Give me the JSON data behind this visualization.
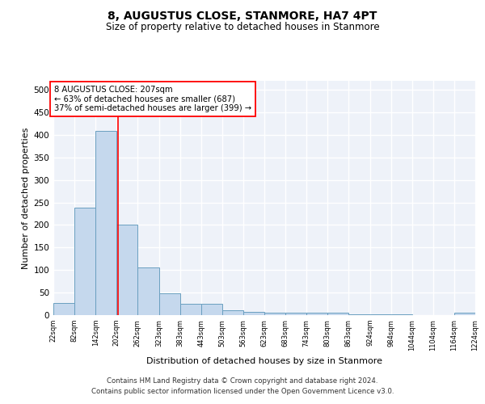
{
  "title": "8, AUGUSTUS CLOSE, STANMORE, HA7 4PT",
  "subtitle": "Size of property relative to detached houses in Stanmore",
  "xlabel": "Distribution of detached houses by size in Stanmore",
  "ylabel": "Number of detached properties",
  "bar_color": "#c5d8ed",
  "bar_edge_color": "#6a9fc0",
  "background_color": "#eef2f9",
  "grid_color": "#ffffff",
  "red_line_x": 207,
  "annotation_line1": "8 AUGUSTUS CLOSE: 207sqm",
  "annotation_line2": "← 63% of detached houses are smaller (687)",
  "annotation_line3": "37% of semi-detached houses are larger (399) →",
  "bin_edges": [
    22,
    82,
    142,
    202,
    262,
    323,
    383,
    443,
    503,
    563,
    623,
    683,
    743,
    803,
    863,
    924,
    984,
    1044,
    1104,
    1164,
    1224
  ],
  "bin_counts": [
    27,
    238,
    408,
    200,
    106,
    49,
    25,
    25,
    11,
    7,
    5,
    5,
    5,
    5,
    1,
    1,
    1,
    0,
    0,
    5
  ],
  "tick_labels": [
    "22sqm",
    "82sqm",
    "142sqm",
    "202sqm",
    "262sqm",
    "323sqm",
    "383sqm",
    "443sqm",
    "503sqm",
    "563sqm",
    "623sqm",
    "683sqm",
    "743sqm",
    "803sqm",
    "863sqm",
    "924sqm",
    "984sqm",
    "1044sqm",
    "1104sqm",
    "1164sqm",
    "1224sqm"
  ],
  "yticks": [
    0,
    50,
    100,
    150,
    200,
    250,
    300,
    350,
    400,
    450,
    500
  ],
  "ylim": [
    0,
    520
  ],
  "footnote1": "Contains HM Land Registry data © Crown copyright and database right 2024.",
  "footnote2": "Contains public sector information licensed under the Open Government Licence v3.0."
}
